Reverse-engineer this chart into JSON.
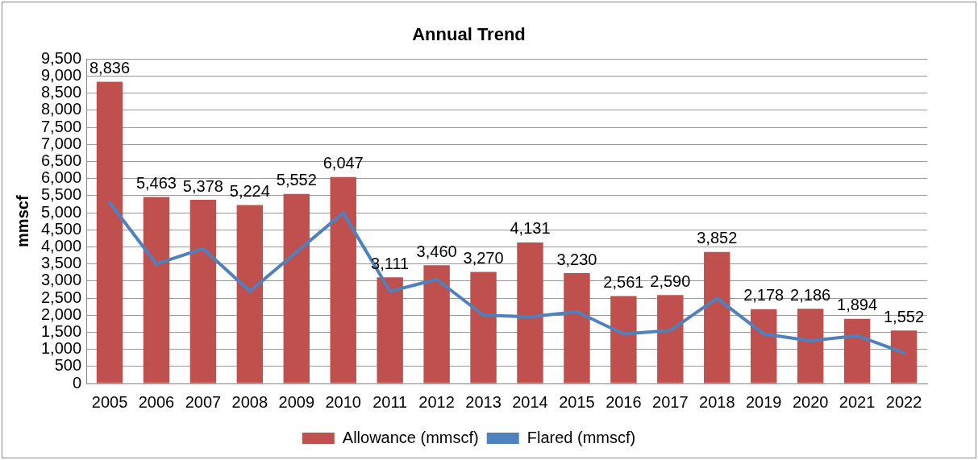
{
  "chart_data": {
    "type": "bar",
    "title": "Annual Trend",
    "ylabel": "mmscf",
    "categories": [
      "2005",
      "2006",
      "2007",
      "2008",
      "2009",
      "2010",
      "2011",
      "2012",
      "2013",
      "2014",
      "2015",
      "2016",
      "2017",
      "2018",
      "2019",
      "2020",
      "2021",
      "2022"
    ],
    "series": [
      {
        "name": "Allowance (mmscf)",
        "color": "#c0504d",
        "values": [
          8836,
          5463,
          5378,
          5224,
          5552,
          6047,
          3111,
          3460,
          3270,
          4131,
          3230,
          2561,
          2590,
          3852,
          2178,
          2186,
          1894,
          1552
        ],
        "value_labels": [
          "8,836",
          "5,463",
          "5,378",
          "5,224",
          "5,552",
          "6,047",
          "3,111",
          "3,460",
          "3,270",
          "4,131",
          "3,230",
          "2,561",
          "2,590",
          "3,852",
          "2,178",
          "2,186",
          "1,894",
          "1,552"
        ]
      },
      {
        "name": "Flared (mmscf)",
        "type": "line",
        "color": "#4f81bd",
        "values": [
          5300,
          3500,
          3950,
          2700,
          3850,
          5000,
          2700,
          3050,
          2000,
          1950,
          2100,
          1450,
          1550,
          2500,
          1450,
          1250,
          1400,
          900
        ]
      }
    ],
    "ylim": [
      0,
      9500
    ],
    "yticks": [
      {
        "value": 0,
        "label": "0"
      },
      {
        "value": 500,
        "label": "500"
      },
      {
        "value": 1000,
        "label": "1,000"
      },
      {
        "value": 1500,
        "label": "1,500"
      },
      {
        "value": 2000,
        "label": "2,000"
      },
      {
        "value": 2500,
        "label": "2,500"
      },
      {
        "value": 3000,
        "label": "3,000"
      },
      {
        "value": 3500,
        "label": "3,500"
      },
      {
        "value": 4000,
        "label": "4,000"
      },
      {
        "value": 4500,
        "label": "4,500"
      },
      {
        "value": 5000,
        "label": "5,000"
      },
      {
        "value": 5500,
        "label": "5,500"
      },
      {
        "value": 6000,
        "label": "6,000"
      },
      {
        "value": 6500,
        "label": "6,500"
      },
      {
        "value": 7000,
        "label": "7,000"
      },
      {
        "value": 7500,
        "label": "7,500"
      },
      {
        "value": 8000,
        "label": "8,000"
      },
      {
        "value": 8500,
        "label": "8,500"
      },
      {
        "value": 9000,
        "label": "9,000"
      },
      {
        "value": 9500,
        "label": "9,500"
      }
    ],
    "grid": "y",
    "legend": "bottom",
    "marker": "none",
    "line_style": "solid"
  }
}
